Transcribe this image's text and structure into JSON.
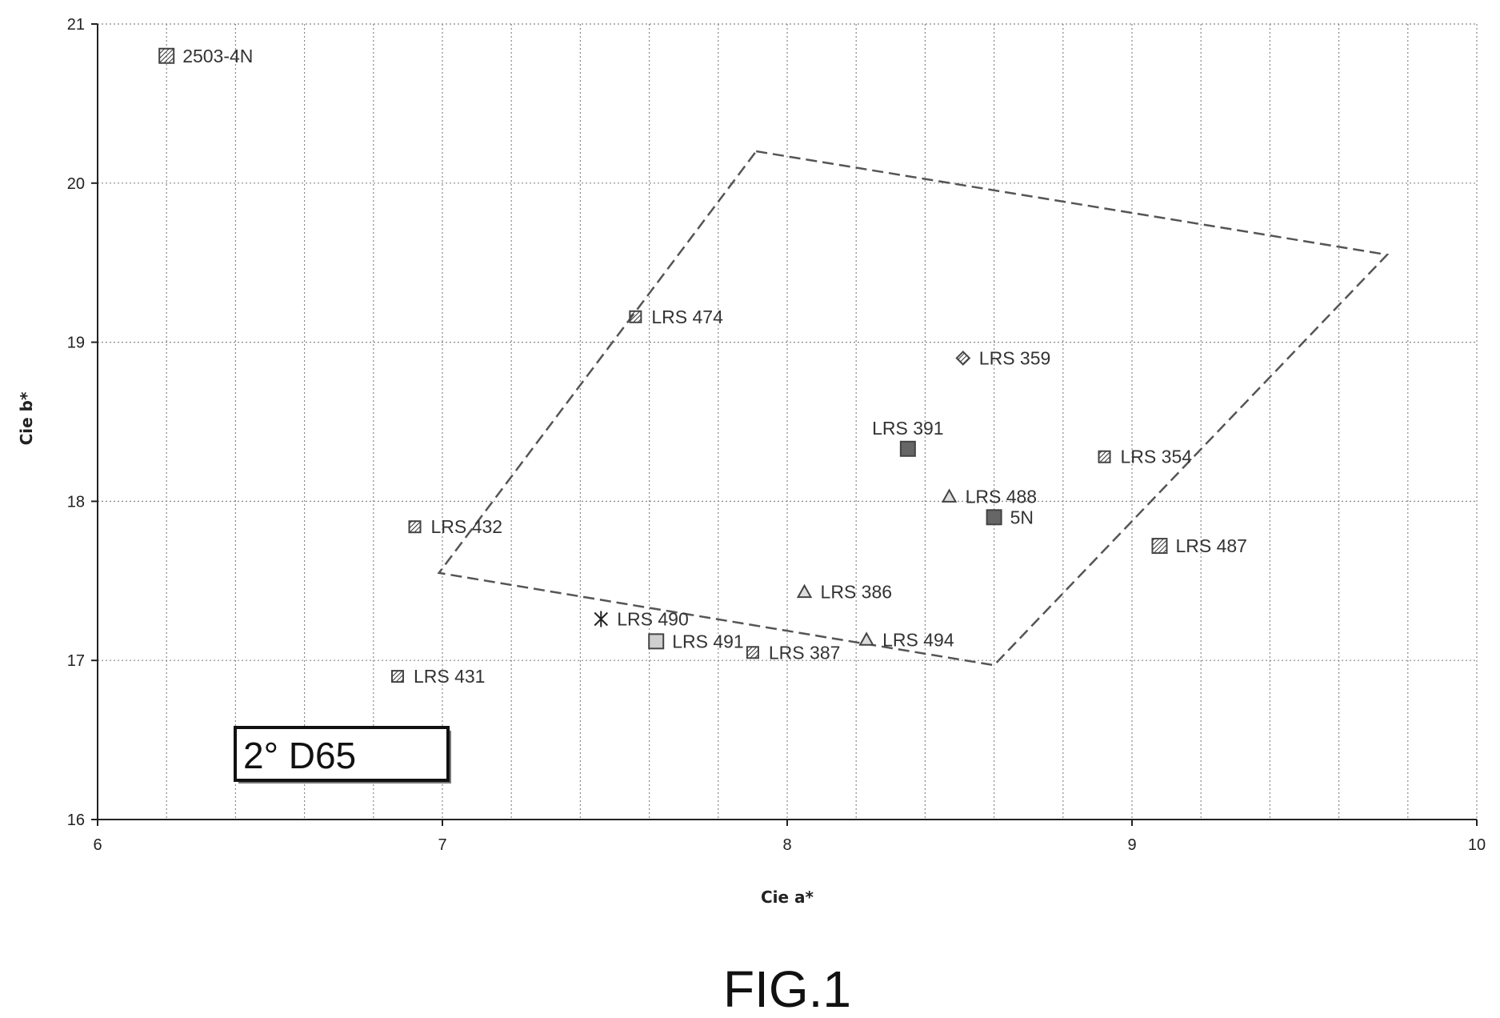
{
  "chart_data": {
    "type": "scatter",
    "title": "",
    "xlabel": "Cie a*",
    "ylabel": "Cie b*",
    "xlim": [
      6,
      10
    ],
    "ylim": [
      16,
      21
    ],
    "xticks": [
      "6",
      "7",
      "8",
      "9",
      "10"
    ],
    "yticks": [
      "16",
      "17",
      "18",
      "19",
      "20",
      "21"
    ],
    "grid": true,
    "legend": "none",
    "annotation": "2° D65",
    "figure_label": "FIG.1",
    "points": [
      {
        "label": "2503-4N",
        "x": 6.2,
        "y": 20.8,
        "marker": "square-hatched"
      },
      {
        "label": "LRS 474",
        "x": 7.56,
        "y": 19.16,
        "marker": "square-dotted"
      },
      {
        "label": "LRS 359",
        "x": 8.51,
        "y": 18.9,
        "marker": "diamond"
      },
      {
        "label": "LRS 391",
        "x": 8.35,
        "y": 18.33,
        "marker": "square-dark"
      },
      {
        "label": "LRS  354",
        "x": 8.92,
        "y": 18.28,
        "marker": "square-dotted"
      },
      {
        "label": "LRS 488",
        "x": 8.47,
        "y": 18.03,
        "marker": "triangle"
      },
      {
        "label": "5N",
        "x": 8.6,
        "y": 17.9,
        "marker": "square-dark"
      },
      {
        "label": "LRS 432",
        "x": 6.92,
        "y": 17.84,
        "marker": "square-dotted"
      },
      {
        "label": "LRS 487",
        "x": 9.08,
        "y": 17.72,
        "marker": "square-hatched"
      },
      {
        "label": "LRS 386",
        "x": 8.05,
        "y": 17.43,
        "marker": "triangle"
      },
      {
        "label": "LRS 490",
        "x": 7.46,
        "y": 17.26,
        "marker": "star"
      },
      {
        "label": "LRS 491",
        "x": 7.62,
        "y": 17.12,
        "marker": "square-light"
      },
      {
        "label": "LRS 494",
        "x": 8.23,
        "y": 17.13,
        "marker": "triangle"
      },
      {
        "label": "LRS 387",
        "x": 7.9,
        "y": 17.05,
        "marker": "square-dotted"
      },
      {
        "label": "LRS 431",
        "x": 6.87,
        "y": 16.9,
        "marker": "square-dotted"
      }
    ],
    "region_polygon": [
      {
        "x": 7.91,
        "y": 20.2
      },
      {
        "x": 9.74,
        "y": 19.55
      },
      {
        "x": 8.6,
        "y": 16.97
      },
      {
        "x": 6.99,
        "y": 17.55
      }
    ]
  },
  "colors": {
    "grid": "#888888",
    "marker": "#444444",
    "polygon": "#555555"
  }
}
